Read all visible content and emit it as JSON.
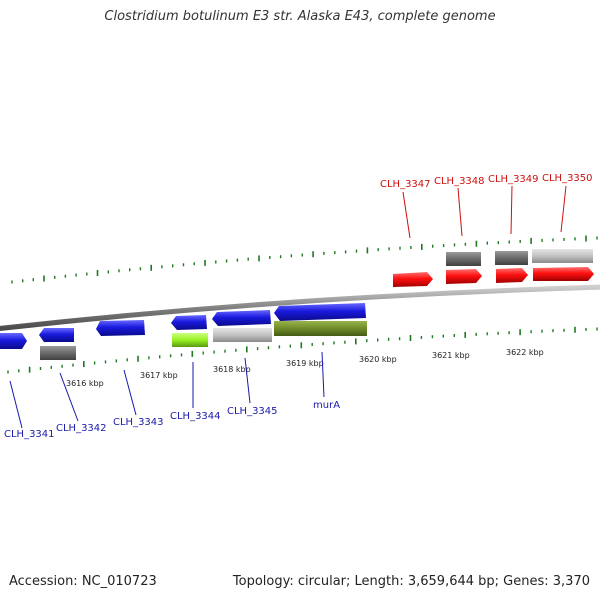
{
  "title": "Clostridium botulinum E3 str. Alaska E43, complete genome",
  "footer": {
    "accession_text": "Accession: NC_010723",
    "summary_text": "Topology: circular; Length: 3,659,644 bp; Genes: 3,370"
  },
  "colors": {
    "blue_gene": "#1a1adf",
    "red_gene": "#ff1010",
    "grey_dark": "#6a6a6a",
    "grey_light": "#c2c2c2",
    "lime_gene": "#99f024",
    "olive_gene": "#6e8c2a",
    "blue_label": "#1a1aaa",
    "red_label": "#cc1010",
    "tick_green": "#1f7a1f",
    "backbone": "#808080"
  },
  "scale_ticks": [
    "3616 kbp",
    "3617 kbp",
    "3618 kbp",
    "3619 kbp",
    "3620 kbp",
    "3621 kbp",
    "3622 kbp"
  ],
  "gene_labels_reverse": [
    "CLH_3341",
    "CLH_3342",
    "CLH_3343",
    "CLH_3344",
    "CLH_3345",
    "murA"
  ],
  "gene_labels_forward": [
    "CLH_3347",
    "CLH_3348",
    "CLH_3349",
    "CLH_3350"
  ]
}
